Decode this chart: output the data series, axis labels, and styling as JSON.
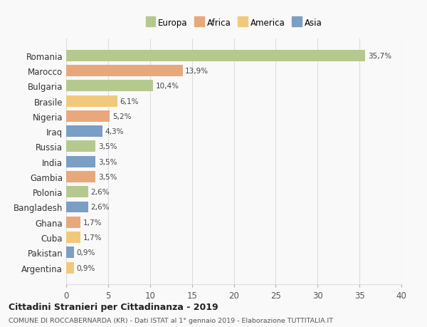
{
  "countries": [
    "Romania",
    "Marocco",
    "Bulgaria",
    "Brasile",
    "Nigeria",
    "Iraq",
    "Russia",
    "India",
    "Gambia",
    "Polonia",
    "Bangladesh",
    "Ghana",
    "Cuba",
    "Pakistan",
    "Argentina"
  ],
  "values": [
    35.7,
    13.9,
    10.4,
    6.1,
    5.2,
    4.3,
    3.5,
    3.5,
    3.5,
    2.6,
    2.6,
    1.7,
    1.7,
    0.9,
    0.9
  ],
  "labels": [
    "35,7%",
    "13,9%",
    "10,4%",
    "6,1%",
    "5,2%",
    "4,3%",
    "3,5%",
    "3,5%",
    "3,5%",
    "2,6%",
    "2,6%",
    "1,7%",
    "1,7%",
    "0,9%",
    "0,9%"
  ],
  "colors": [
    "#b5c98e",
    "#e8a87c",
    "#b5c98e",
    "#f2c97a",
    "#e8a87c",
    "#7b9fc4",
    "#b5c98e",
    "#7b9fc4",
    "#e8a87c",
    "#b5c98e",
    "#7b9fc4",
    "#e8a87c",
    "#f2c97a",
    "#7b9fc4",
    "#f2c97a"
  ],
  "legend_labels": [
    "Europa",
    "Africa",
    "America",
    "Asia"
  ],
  "legend_colors": [
    "#b5c98e",
    "#e8a87c",
    "#f2c97a",
    "#7b9fc4"
  ],
  "title": "Cittadini Stranieri per Cittadinanza - 2019",
  "subtitle": "COMUNE DI ROCCABERNARDA (KR) - Dati ISTAT al 1° gennaio 2019 - Elaborazione TUTTITALIA.IT",
  "xlim": [
    0,
    40
  ],
  "xticks": [
    0,
    5,
    10,
    15,
    20,
    25,
    30,
    35,
    40
  ],
  "bg_color": "#f9f9f9",
  "grid_color": "#dddddd"
}
